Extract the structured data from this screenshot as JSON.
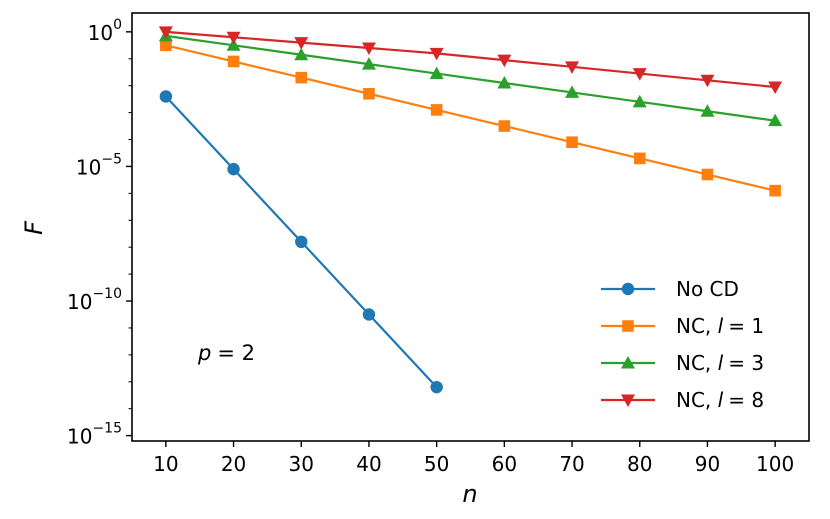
{
  "chart_data": {
    "type": "line",
    "title": "",
    "xlabel": "n",
    "ylabel": "F",
    "yscale": "log",
    "xlim": [
      5,
      105
    ],
    "ylim_log10": [
      -15.2,
      0.7
    ],
    "x_ticks": [
      {
        "value": 10,
        "label": "10"
      },
      {
        "value": 20,
        "label": "20"
      },
      {
        "value": 30,
        "label": "30"
      },
      {
        "value": 40,
        "label": "40"
      },
      {
        "value": 50,
        "label": "50"
      },
      {
        "value": 60,
        "label": "60"
      },
      {
        "value": 70,
        "label": "70"
      },
      {
        "value": 80,
        "label": "80"
      },
      {
        "value": 90,
        "label": "90"
      },
      {
        "value": 100,
        "label": "100"
      }
    ],
    "y_ticks": [
      {
        "exponent": 0,
        "base": "10",
        "exp": "0"
      },
      {
        "exponent": -5,
        "base": "10",
        "exp": "−5"
      },
      {
        "exponent": -10,
        "base": "10",
        "exp": "−10"
      },
      {
        "exponent": -15,
        "base": "10",
        "exp": "−15"
      }
    ],
    "series": [
      {
        "name": "No CD",
        "label_text": "No CD",
        "label_var": "",
        "label_value": "",
        "color": "#1f77b4",
        "marker": "circle",
        "x": [
          10,
          20,
          30,
          40,
          50
        ],
        "log10_y": [
          -2.4,
          -5.1,
          -7.8,
          -10.5,
          -13.2
        ]
      },
      {
        "name": "NC, l=1",
        "label_text": "NC, ",
        "label_var": "l",
        "label_value": "= 1",
        "color": "#ff7f0e",
        "marker": "square",
        "x": [
          10,
          20,
          30,
          40,
          50,
          60,
          70,
          80,
          90,
          100
        ],
        "log10_y": [
          -0.5,
          -1.1,
          -1.7,
          -2.3,
          -2.9,
          -3.5,
          -4.1,
          -4.7,
          -5.3,
          -5.9
        ]
      },
      {
        "name": "NC, l=3",
        "label_text": "NC, ",
        "label_var": "l",
        "label_value": "= 3",
        "color": "#2ca02c",
        "marker": "triangle-up",
        "x": [
          10,
          20,
          30,
          40,
          50,
          60,
          70,
          80,
          90,
          100
        ],
        "log10_y": [
          -0.15,
          -0.5,
          -0.85,
          -1.2,
          -1.55,
          -1.9,
          -2.25,
          -2.6,
          -2.95,
          -3.3
        ]
      },
      {
        "name": "NC, l=8",
        "label_text": "NC, ",
        "label_var": "l",
        "label_value": "= 8",
        "color": "#d62728",
        "marker": "triangle-down",
        "x": [
          10,
          20,
          30,
          40,
          50,
          60,
          70,
          80,
          90,
          100
        ],
        "log10_y": [
          0.0,
          -0.2,
          -0.4,
          -0.6,
          -0.8,
          -1.05,
          -1.3,
          -1.55,
          -1.8,
          -2.05
        ]
      }
    ],
    "legend_position": "lower-right",
    "annotation": {
      "var": "p",
      "value": "= 2"
    }
  }
}
